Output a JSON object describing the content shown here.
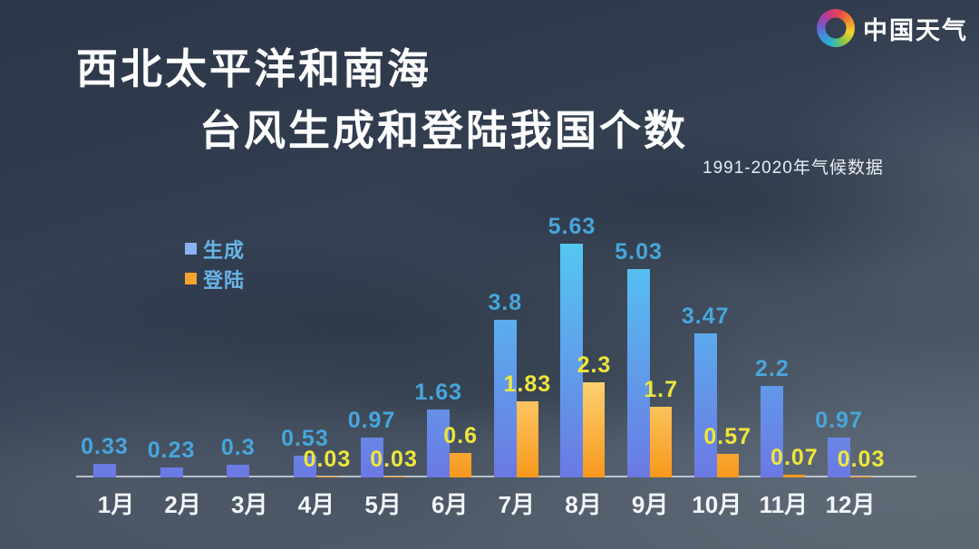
{
  "logo": {
    "text": "中国天气"
  },
  "title": {
    "line1": "西北太平洋和南海",
    "line2": "台风生成和登陆我国个数"
  },
  "subtitle": "1991-2020年气候数据",
  "legend": {
    "items": [
      {
        "label": "生成",
        "color": "#8ab2f2"
      },
      {
        "label": "登陆",
        "color": "#f2a42e"
      }
    ]
  },
  "colors": {
    "background_top": "#2c3849",
    "background_bottom": "#545f6c",
    "generated_bar_top": "#53c7f2",
    "generated_bar_bottom": "#6b79e3",
    "landfall_bar_top": "#fdd171",
    "landfall_bar_bottom": "#f8981c",
    "generated_label": "#47a6dc",
    "landfall_label": "#efe63c",
    "axis_line": "#cdd4dd",
    "title_text": "#ffffff"
  },
  "chart_data": {
    "type": "bar",
    "title": "西北太平洋和南海台风生成和登陆我国个数",
    "subtitle": "1991-2020年气候数据",
    "categories": [
      "1月",
      "2月",
      "3月",
      "4月",
      "5月",
      "6月",
      "7月",
      "8月",
      "9月",
      "10月",
      "11月",
      "12月"
    ],
    "series": [
      {
        "name": "生成",
        "values": [
          0.33,
          0.23,
          0.3,
          0.53,
          0.97,
          1.63,
          3.8,
          5.63,
          5.03,
          3.47,
          2.2,
          0.97
        ],
        "label_color": "#47a6dc"
      },
      {
        "name": "登陆",
        "values": [
          null,
          null,
          null,
          0.03,
          0.03,
          0.6,
          1.83,
          2.3,
          1.7,
          0.57,
          0.07,
          0.03
        ],
        "label_color": "#efe63c"
      }
    ],
    "xlabel": "",
    "ylabel": "",
    "ylim": [
      0,
      6
    ],
    "grid": false,
    "legend_position": "top-left",
    "value_labels": true
  }
}
